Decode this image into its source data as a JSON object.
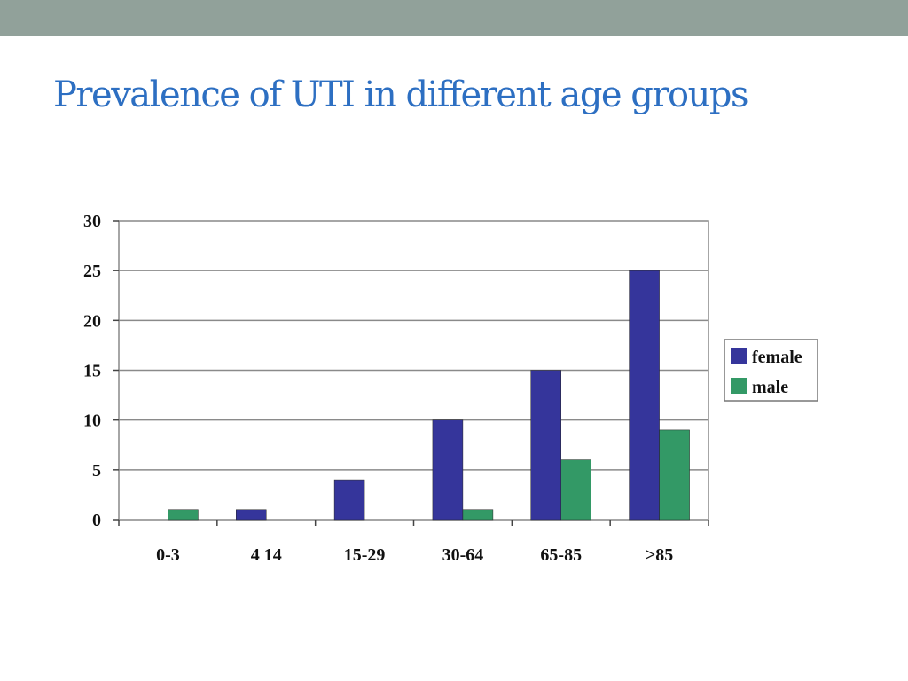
{
  "slide": {
    "title": "Prevalence of UTI in different age groups",
    "topbar_color": "#91a19a",
    "title_color": "#2d6fc2"
  },
  "chart_data": {
    "type": "bar",
    "title": "",
    "xlabel": "",
    "ylabel": "",
    "categories": [
      "0-3",
      "4  14",
      "15-29",
      "30-64",
      "65-85",
      ">85"
    ],
    "series": [
      {
        "name": "female",
        "color": "#35359b",
        "values": [
          0,
          1,
          4,
          10,
          15,
          25
        ]
      },
      {
        "name": "male",
        "color": "#339966",
        "values": [
          1,
          0,
          0,
          1,
          6,
          9
        ]
      }
    ],
    "ylim": [
      0,
      30
    ],
    "yticks": [
      0,
      5,
      10,
      15,
      20,
      25,
      30
    ],
    "grid": true,
    "legend_position": "right"
  }
}
